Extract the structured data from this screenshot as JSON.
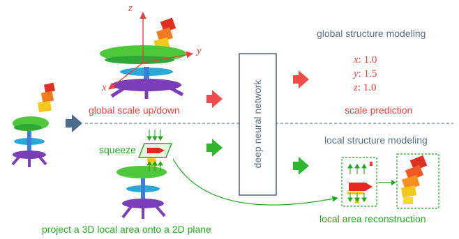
{
  "axes": {
    "z": "z",
    "y": "y",
    "x": "x"
  },
  "global": {
    "heading": "global structure modeling",
    "scale_label": "global scale up/down",
    "prediction_label": "scale prediction",
    "values": [
      {
        "axis": "x",
        "value": ": 1.0"
      },
      {
        "axis": "y",
        "value": ": 1.5"
      },
      {
        "axis": "z",
        "value": ": 1.0"
      }
    ]
  },
  "network_label": "deep neural network",
  "local": {
    "heading": "local structure modeling",
    "squeeze_label": "squeeze",
    "project_label": "project a 3D local area onto a 2D plane",
    "reconstruction_label": "local area reconstruction"
  },
  "colors": {
    "red": "#e8413b",
    "green": "#22a822",
    "slate": "#5d6f86",
    "arrow_blue": "#4e6a8c",
    "dashed": "#5b7fb0"
  }
}
